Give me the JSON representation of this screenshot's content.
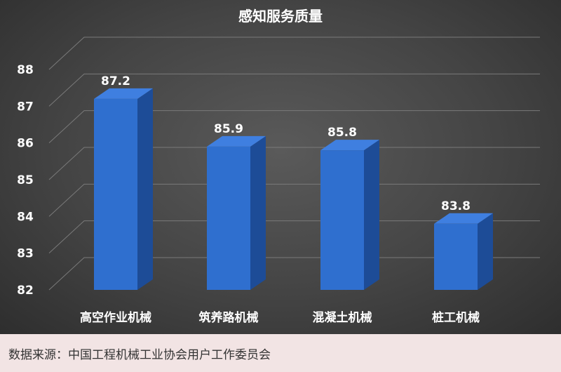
{
  "chart_data": {
    "type": "bar",
    "title": "感知服务质量",
    "categories": [
      "高空作业机械",
      "筑养路机械",
      "混凝土机械",
      "桩工机械"
    ],
    "values": [
      87.2,
      85.9,
      85.8,
      83.8
    ],
    "data_labels": [
      "87.2",
      "85.9",
      "85.8",
      "83.8"
    ],
    "ylim": [
      82,
      88
    ],
    "yticks": [
      "82",
      "83",
      "84",
      "85",
      "86",
      "87",
      "88"
    ],
    "grid": true,
    "three_d": true,
    "colors": {
      "bar_front": "#2f6fcf",
      "bar_side": "#1d4c97",
      "bar_top": "#3f7fe0",
      "text": "#ffffff",
      "grid": "#7a7a7a"
    }
  },
  "source": "数据来源：中国工程机械工业协会用户工作委员会"
}
